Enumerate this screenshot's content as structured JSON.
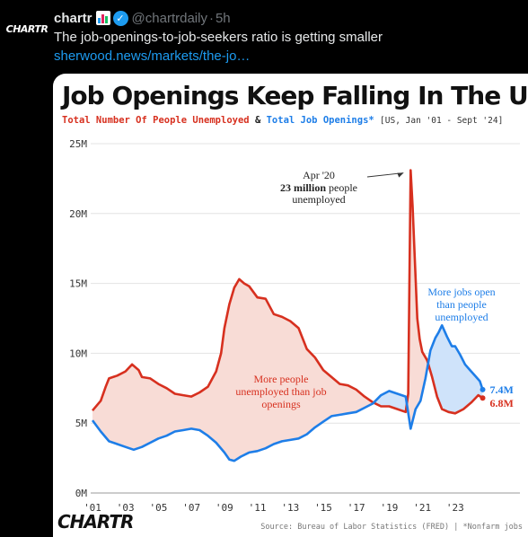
{
  "tweet": {
    "avatar_text": "CHARTR",
    "author": "chartr",
    "handle": "@chartrdaily",
    "separator": "·",
    "time": "5h",
    "text": "The job-openings-to-job-seekers ratio is getting smaller",
    "link": "sherwood.news/markets/the-jo…",
    "colors": {
      "link": "#1d9bf0",
      "verified": "#1d9bf0"
    }
  },
  "card": {
    "brand": "CHARTR",
    "source": "Source: Bureau of Labor Statistics (FRED)  | *Nonfarm jobs"
  },
  "chart_data": {
    "type": "line",
    "title": "Job Openings Keep Falling In The US",
    "subtitle": {
      "unemployed_label": "Total Number Of People Unemployed",
      "amp": "&",
      "openings_label": "Total Job Openings*",
      "range_note": "[US, Jan '01 - Sept '24]"
    },
    "x_ticks": [
      "'01",
      "'03",
      "'05",
      "'07",
      "'09",
      "'11",
      "'13",
      "'15",
      "'17",
      "'19",
      "'21",
      "'23"
    ],
    "y_ticks": [
      "0M",
      "5M",
      "10M",
      "15M",
      "20M",
      "25M"
    ],
    "ylim": [
      0,
      25
    ],
    "xlim": [
      2001.0,
      2024.75
    ],
    "grid": true,
    "series": [
      {
        "name": "Total Number Of People Unemployed",
        "color": "#d7301f",
        "points": [
          [
            2001.0,
            5.9
          ],
          [
            2001.5,
            6.6
          ],
          [
            2001.8,
            7.6
          ],
          [
            2002.0,
            8.2
          ],
          [
            2002.5,
            8.4
          ],
          [
            2003.0,
            8.7
          ],
          [
            2003.4,
            9.2
          ],
          [
            2003.8,
            8.8
          ],
          [
            2004.0,
            8.3
          ],
          [
            2004.5,
            8.2
          ],
          [
            2005.0,
            7.8
          ],
          [
            2005.5,
            7.5
          ],
          [
            2006.0,
            7.1
          ],
          [
            2006.5,
            7.0
          ],
          [
            2007.0,
            6.9
          ],
          [
            2007.5,
            7.2
          ],
          [
            2008.0,
            7.6
          ],
          [
            2008.5,
            8.7
          ],
          [
            2008.8,
            10.0
          ],
          [
            2009.0,
            11.8
          ],
          [
            2009.3,
            13.5
          ],
          [
            2009.6,
            14.7
          ],
          [
            2009.9,
            15.3
          ],
          [
            2010.2,
            15.0
          ],
          [
            2010.5,
            14.8
          ],
          [
            2011.0,
            14.0
          ],
          [
            2011.5,
            13.9
          ],
          [
            2012.0,
            12.8
          ],
          [
            2012.5,
            12.6
          ],
          [
            2013.0,
            12.3
          ],
          [
            2013.5,
            11.8
          ],
          [
            2014.0,
            10.3
          ],
          [
            2014.5,
            9.7
          ],
          [
            2015.0,
            8.8
          ],
          [
            2015.5,
            8.3
          ],
          [
            2016.0,
            7.8
          ],
          [
            2016.5,
            7.7
          ],
          [
            2017.0,
            7.4
          ],
          [
            2017.5,
            6.9
          ],
          [
            2018.0,
            6.5
          ],
          [
            2018.5,
            6.2
          ],
          [
            2019.0,
            6.2
          ],
          [
            2019.5,
            6.0
          ],
          [
            2020.0,
            5.8
          ],
          [
            2020.15,
            7.1
          ],
          [
            2020.3,
            23.1
          ],
          [
            2020.42,
            20.5
          ],
          [
            2020.55,
            16.8
          ],
          [
            2020.7,
            12.5
          ],
          [
            2020.85,
            11.0
          ],
          [
            2021.0,
            10.1
          ],
          [
            2021.3,
            9.5
          ],
          [
            2021.6,
            8.3
          ],
          [
            2021.9,
            6.9
          ],
          [
            2022.2,
            6.0
          ],
          [
            2022.6,
            5.8
          ],
          [
            2023.0,
            5.7
          ],
          [
            2023.5,
            6.0
          ],
          [
            2024.0,
            6.5
          ],
          [
            2024.4,
            7.0
          ],
          [
            2024.67,
            6.8
          ]
        ],
        "end_label": "6.8M"
      },
      {
        "name": "Total Job Openings*",
        "color": "#1e7ee8",
        "points": [
          [
            2001.0,
            5.2
          ],
          [
            2001.5,
            4.4
          ],
          [
            2002.0,
            3.7
          ],
          [
            2002.5,
            3.5
          ],
          [
            2003.0,
            3.3
          ],
          [
            2003.5,
            3.1
          ],
          [
            2004.0,
            3.3
          ],
          [
            2004.5,
            3.6
          ],
          [
            2005.0,
            3.9
          ],
          [
            2005.5,
            4.1
          ],
          [
            2006.0,
            4.4
          ],
          [
            2006.5,
            4.5
          ],
          [
            2007.0,
            4.6
          ],
          [
            2007.5,
            4.5
          ],
          [
            2008.0,
            4.1
          ],
          [
            2008.5,
            3.6
          ],
          [
            2009.0,
            2.9
          ],
          [
            2009.3,
            2.4
          ],
          [
            2009.6,
            2.3
          ],
          [
            2010.0,
            2.6
          ],
          [
            2010.5,
            2.9
          ],
          [
            2011.0,
            3.0
          ],
          [
            2011.5,
            3.2
          ],
          [
            2012.0,
            3.5
          ],
          [
            2012.5,
            3.7
          ],
          [
            2013.0,
            3.8
          ],
          [
            2013.5,
            3.9
          ],
          [
            2014.0,
            4.2
          ],
          [
            2014.5,
            4.7
          ],
          [
            2015.0,
            5.1
          ],
          [
            2015.5,
            5.5
          ],
          [
            2016.0,
            5.6
          ],
          [
            2016.5,
            5.7
          ],
          [
            2017.0,
            5.8
          ],
          [
            2017.5,
            6.1
          ],
          [
            2018.0,
            6.4
          ],
          [
            2018.5,
            7.0
          ],
          [
            2019.0,
            7.3
          ],
          [
            2019.5,
            7.1
          ],
          [
            2020.0,
            6.9
          ],
          [
            2020.3,
            4.6
          ],
          [
            2020.6,
            6.0
          ],
          [
            2020.9,
            6.6
          ],
          [
            2021.2,
            8.2
          ],
          [
            2021.5,
            10.2
          ],
          [
            2021.8,
            11.1
          ],
          [
            2022.0,
            11.5
          ],
          [
            2022.2,
            12.0
          ],
          [
            2022.5,
            11.2
          ],
          [
            2022.8,
            10.5
          ],
          [
            2023.0,
            10.5
          ],
          [
            2023.3,
            9.9
          ],
          [
            2023.6,
            9.2
          ],
          [
            2023.9,
            8.8
          ],
          [
            2024.2,
            8.4
          ],
          [
            2024.5,
            8.0
          ],
          [
            2024.67,
            7.4
          ]
        ],
        "end_label": "7.4M"
      }
    ],
    "annotations": {
      "peak": {
        "lines": [
          "Apr '20",
          "23 million",
          " people",
          "unemployed"
        ],
        "x": 2020.3,
        "y": 23.1
      },
      "unemployed_area": [
        "More people",
        "unemployed than job",
        "openings"
      ],
      "openings_area": [
        "More jobs open",
        "than people",
        "unemployed"
      ]
    },
    "area_colors": {
      "red_fill": "#f8dcd6",
      "blue_fill": "#cfe3fa"
    }
  }
}
